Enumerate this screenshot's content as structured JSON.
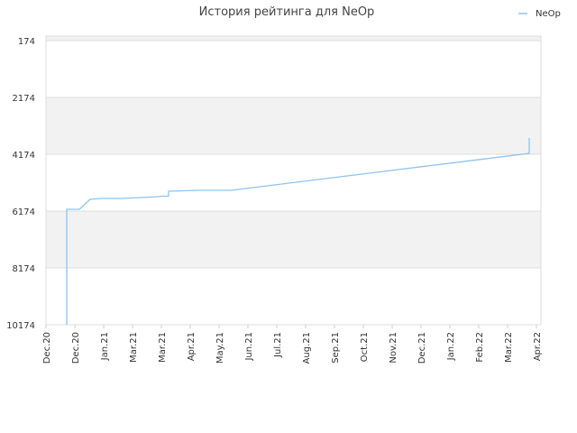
{
  "chart_data": {
    "type": "line",
    "title": "История рейтинга для NeOp",
    "xlim": [
      0,
      17
    ],
    "xticks": [
      {
        "value": 0,
        "label": "Dec.20"
      },
      {
        "value": 1,
        "label": "Dec.20"
      },
      {
        "value": 2,
        "label": "Jan.21"
      },
      {
        "value": 3,
        "label": "Mar.21"
      },
      {
        "value": 4,
        "label": "Mar.21"
      },
      {
        "value": 5,
        "label": "Apr.21"
      },
      {
        "value": 6,
        "label": "May.21"
      },
      {
        "value": 7,
        "label": "Jun.21"
      },
      {
        "value": 8,
        "label": "Jul.21"
      },
      {
        "value": 9,
        "label": "Aug.21"
      },
      {
        "value": 10,
        "label": "Sep.21"
      },
      {
        "value": 11,
        "label": "Oct.21"
      },
      {
        "value": 12,
        "label": "Nov.21"
      },
      {
        "value": 13,
        "label": "Dec.21"
      },
      {
        "value": 14,
        "label": "Jan.22"
      },
      {
        "value": 15,
        "label": "Feb.22"
      },
      {
        "value": 16,
        "label": "Mar.22"
      },
      {
        "value": 17,
        "label": "Apr.22"
      }
    ],
    "ylim": [
      10174,
      15
    ],
    "yticks": [
      174,
      2174,
      4174,
      6174,
      8174,
      10174
    ],
    "grid": true,
    "legend": "top-right",
    "series": [
      {
        "name": "NeOp",
        "color": "#8ec3f0",
        "x": [
          0.72,
          0.72,
          1.16,
          1.53,
          1.91,
          2.63,
          3.88,
          4.03,
          4.25,
          4.25,
          5.28,
          6.41,
          16.75,
          16.75
        ],
        "values": [
          10174,
          6111,
          6111,
          5761,
          5730,
          5730,
          5666,
          5650,
          5650,
          5476,
          5444,
          5444,
          4142,
          3603
        ]
      }
    ]
  }
}
